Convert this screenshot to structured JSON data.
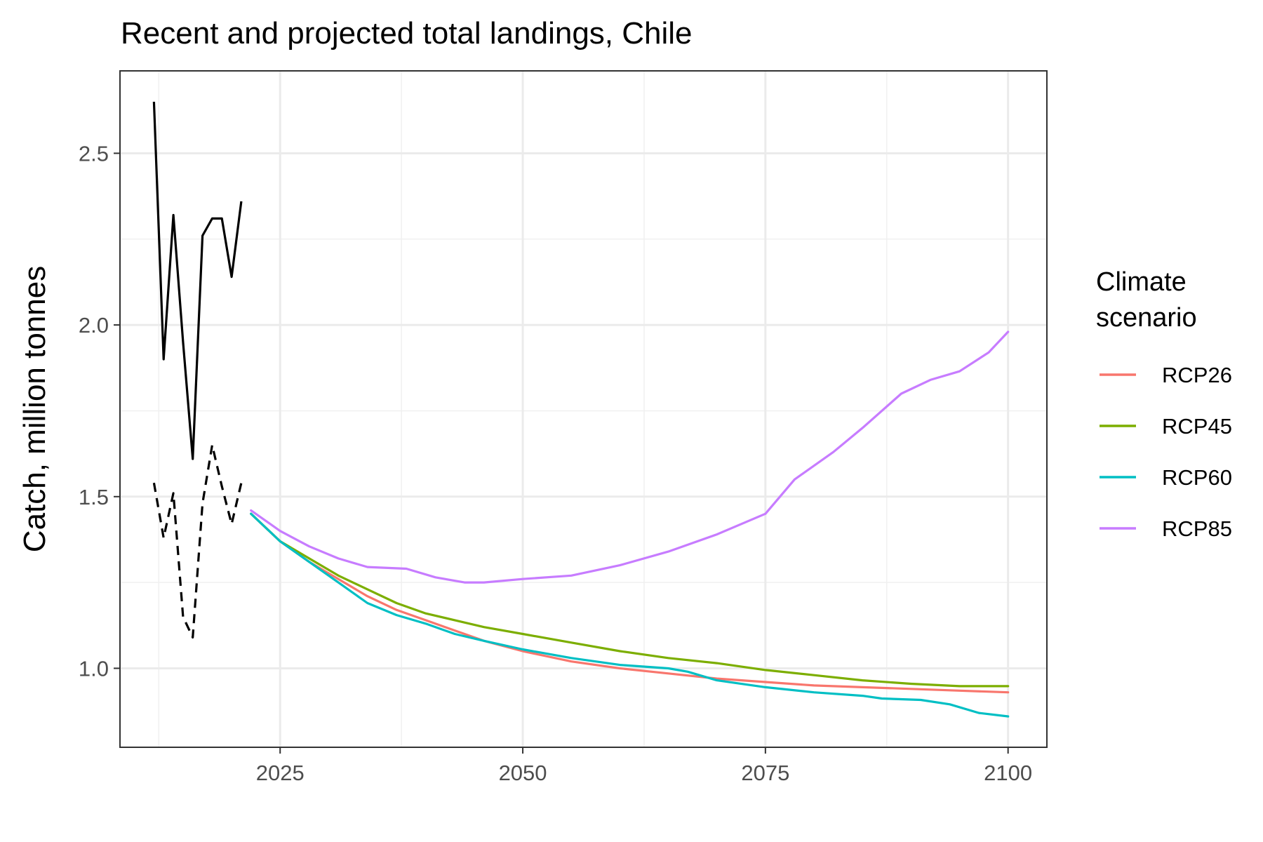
{
  "chart_data": {
    "type": "line",
    "title": "Recent and projected total landings, Chile",
    "xlabel": "",
    "ylabel": "Catch, million tonnes",
    "xlim": [
      2008.5,
      2104
    ],
    "ylim": [
      0.77,
      2.74
    ],
    "x_ticks": [
      {
        "value": 2025,
        "label": "2025"
      },
      {
        "value": 2050,
        "label": "2050"
      },
      {
        "value": 2075,
        "label": "2075"
      },
      {
        "value": 2100,
        "label": "2100"
      }
    ],
    "y_ticks": [
      {
        "value": 1.0,
        "label": "1.0"
      },
      {
        "value": 1.5,
        "label": "1.5"
      },
      {
        "value": 2.0,
        "label": "2.0"
      },
      {
        "value": 2.5,
        "label": "2.5"
      }
    ],
    "grid": true,
    "legend": {
      "title": "Climate\nscenario",
      "title_lines": [
        "Climate",
        "scenario"
      ],
      "position": "right"
    },
    "historical": [
      {
        "style": "solid",
        "color": "#000000",
        "x": [
          2012,
          2013,
          2014,
          2015,
          2016,
          2017,
          2018,
          2019,
          2020,
          2021
        ],
        "y": [
          2.65,
          1.9,
          2.32,
          1.95,
          1.61,
          2.26,
          2.31,
          2.31,
          2.14,
          2.36
        ]
      },
      {
        "style": "dashed",
        "color": "#000000",
        "x": [
          2012,
          2013,
          2014,
          2015,
          2016,
          2017,
          2018,
          2019,
          2020,
          2021
        ],
        "y": [
          1.54,
          1.38,
          1.51,
          1.15,
          1.09,
          1.48,
          1.65,
          1.53,
          1.42,
          1.54
        ]
      }
    ],
    "series": [
      {
        "name": "RCP26",
        "color": "#F8766D",
        "x": [
          2022,
          2025,
          2028,
          2031,
          2034,
          2037,
          2040,
          2043,
          2046,
          2050,
          2055,
          2060,
          2065,
          2070,
          2075,
          2080,
          2085,
          2090,
          2095,
          2100
        ],
        "y": [
          1.45,
          1.37,
          1.31,
          1.26,
          1.21,
          1.17,
          1.14,
          1.11,
          1.08,
          1.05,
          1.02,
          1.0,
          0.985,
          0.97,
          0.96,
          0.95,
          0.945,
          0.94,
          0.935,
          0.93
        ]
      },
      {
        "name": "RCP45",
        "color": "#7CAE00",
        "x": [
          2022,
          2025,
          2028,
          2031,
          2034,
          2037,
          2040,
          2043,
          2046,
          2050,
          2055,
          2060,
          2065,
          2070,
          2075,
          2080,
          2085,
          2090,
          2095,
          2100
        ],
        "y": [
          1.45,
          1.37,
          1.32,
          1.27,
          1.23,
          1.19,
          1.16,
          1.14,
          1.12,
          1.1,
          1.075,
          1.05,
          1.03,
          1.015,
          0.995,
          0.98,
          0.965,
          0.955,
          0.948,
          0.948
        ]
      },
      {
        "name": "RCP60",
        "color": "#00BFC4",
        "x": [
          2022,
          2025,
          2028,
          2031,
          2034,
          2037,
          2040,
          2043,
          2046,
          2050,
          2055,
          2060,
          2065,
          2067,
          2070,
          2075,
          2080,
          2085,
          2087,
          2091,
          2094,
          2097,
          2100
        ],
        "y": [
          1.45,
          1.37,
          1.31,
          1.25,
          1.19,
          1.155,
          1.13,
          1.1,
          1.08,
          1.055,
          1.03,
          1.01,
          1.0,
          0.99,
          0.965,
          0.945,
          0.93,
          0.92,
          0.912,
          0.908,
          0.895,
          0.87,
          0.86
        ]
      },
      {
        "name": "RCP85",
        "color": "#C77CFF",
        "x": [
          2022,
          2025,
          2028,
          2031,
          2034,
          2038,
          2041,
          2044,
          2046,
          2050,
          2055,
          2060,
          2065,
          2070,
          2075,
          2078,
          2082,
          2085,
          2089,
          2092,
          2095,
          2098,
          2100
        ],
        "y": [
          1.46,
          1.4,
          1.355,
          1.32,
          1.295,
          1.29,
          1.265,
          1.25,
          1.25,
          1.26,
          1.27,
          1.3,
          1.34,
          1.39,
          1.45,
          1.55,
          1.63,
          1.7,
          1.8,
          1.84,
          1.865,
          1.92,
          1.98
        ]
      }
    ]
  }
}
